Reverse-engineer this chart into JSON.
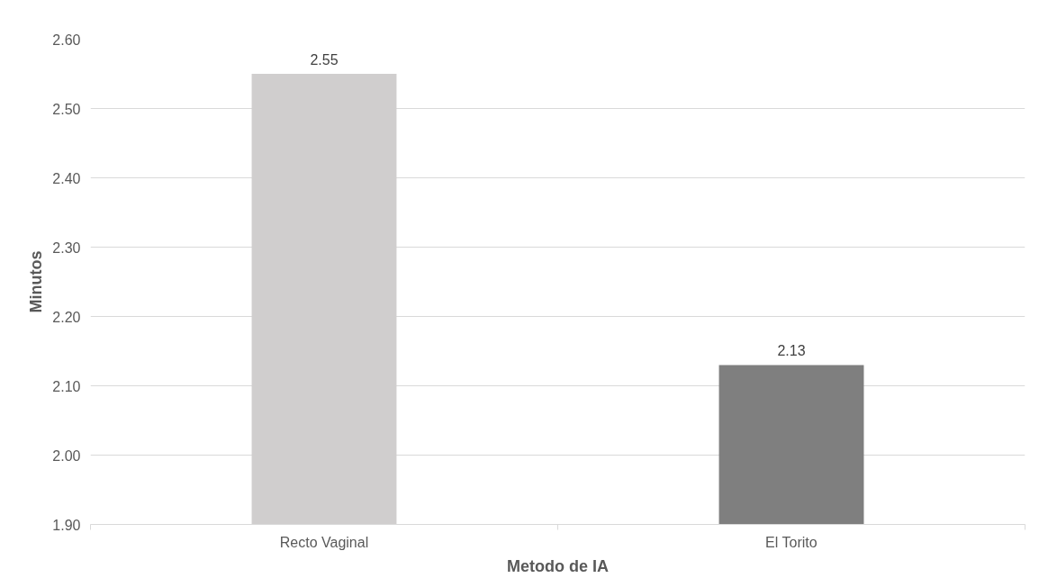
{
  "chart_data": {
    "type": "bar",
    "xlabel": "Metodo de IA",
    "ylabel": "Minutos",
    "categories": [
      "Recto Vaginal",
      "El Torito"
    ],
    "values": [
      2.55,
      2.13
    ],
    "colors": [
      "#d0cece",
      "#7f7f7f"
    ],
    "ylim": [
      1.9,
      2.6
    ],
    "yticks": [
      {
        "value": 1.9,
        "label": "1.90"
      },
      {
        "value": 2.0,
        "label": "2.00"
      },
      {
        "value": 2.1,
        "label": "2.10"
      },
      {
        "value": 2.2,
        "label": "2.20"
      },
      {
        "value": 2.3,
        "label": "2.30"
      },
      {
        "value": 2.4,
        "label": "2.40"
      },
      {
        "value": 2.5,
        "label": "2.50"
      },
      {
        "value": 2.6,
        "label": "2.60"
      }
    ],
    "grid": "y",
    "data_labels": true
  }
}
